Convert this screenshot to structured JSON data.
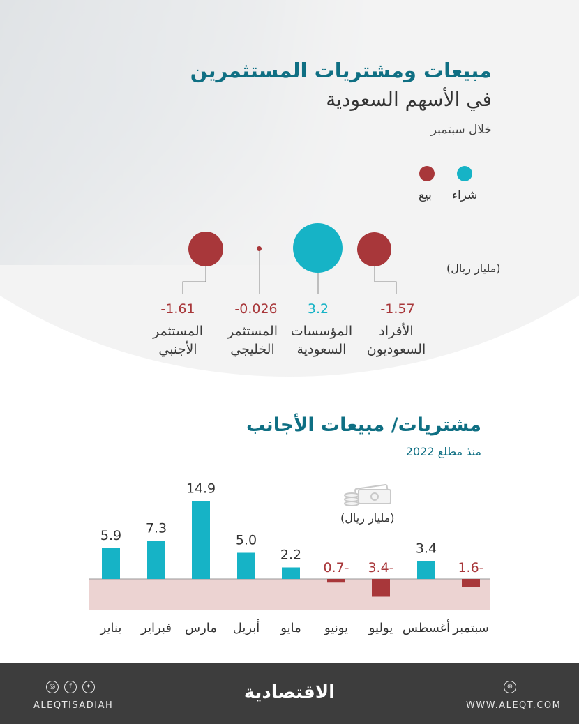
{
  "header": {
    "title_line1": "مبيعات ومشتريات المستثمرين",
    "title_line2": "في الأسهم السعودية",
    "subtitle": "خلال سبتمبر"
  },
  "legend": {
    "buy": {
      "label": "شراء",
      "color": "#16b3c6"
    },
    "sell": {
      "label": "بيع",
      "color": "#a8373a"
    }
  },
  "unit_label": "(مليار ريال)",
  "investors": [
    {
      "label_line1": "الأفراد",
      "label_line2": "السعوديون",
      "value": -1.57,
      "value_text": "-1.57",
      "type": "sell"
    },
    {
      "label_line1": "المؤسسات",
      "label_line2": "السعودية",
      "value": 3.2,
      "value_text": "3.2",
      "type": "buy"
    },
    {
      "label_line1": "المستثمر",
      "label_line2": "الخليجي",
      "value": -0.026,
      "value_text": "-0.026",
      "type": "sell"
    },
    {
      "label_line1": "المستثمر",
      "label_line2": "الأجنبي",
      "value": -1.61,
      "value_text": "-1.61",
      "type": "sell"
    }
  ],
  "section2": {
    "title": "مشتريات/ مبيعات الأجانب",
    "subtitle": "منذ مطلع 2022",
    "unit_label": "(مليار ريال)"
  },
  "chart_data": [
    {
      "type": "bubble",
      "title": "مبيعات ومشتريات المستثمرين في الأسهم السعودية",
      "categories": [
        "الأفراد السعوديون",
        "المؤسسات السعودية",
        "المستثمر الخليجي",
        "المستثمر الأجنبي"
      ],
      "values": [
        -1.57,
        3.2,
        -0.026,
        -1.61
      ],
      "unit": "(مليار ريال)"
    },
    {
      "type": "bar",
      "title": "مشتريات/ مبيعات الأجانب",
      "categories": [
        "يناير",
        "فبراير",
        "مارس",
        "أبريل",
        "مايو",
        "يونيو",
        "يوليو",
        "أغسطس",
        "سبتمبر"
      ],
      "values": [
        5.9,
        7.3,
        14.9,
        5.0,
        2.2,
        -0.7,
        -3.4,
        3.4,
        -1.6
      ],
      "value_labels": [
        "5.9",
        "7.3",
        "14.9",
        "5.0",
        "2.2",
        "0.7-",
        "3.4-",
        "3.4",
        "1.6-"
      ],
      "unit": "(مليار ريال)",
      "colors": {
        "positive": "#16b3c6",
        "negative": "#a8373a",
        "negative_band": "#ecd3d2"
      }
    }
  ],
  "footer": {
    "social_handle": "ALEQTISADIAH",
    "brand": "الاقتصادية",
    "website": "WWW.ALEQT.COM"
  }
}
